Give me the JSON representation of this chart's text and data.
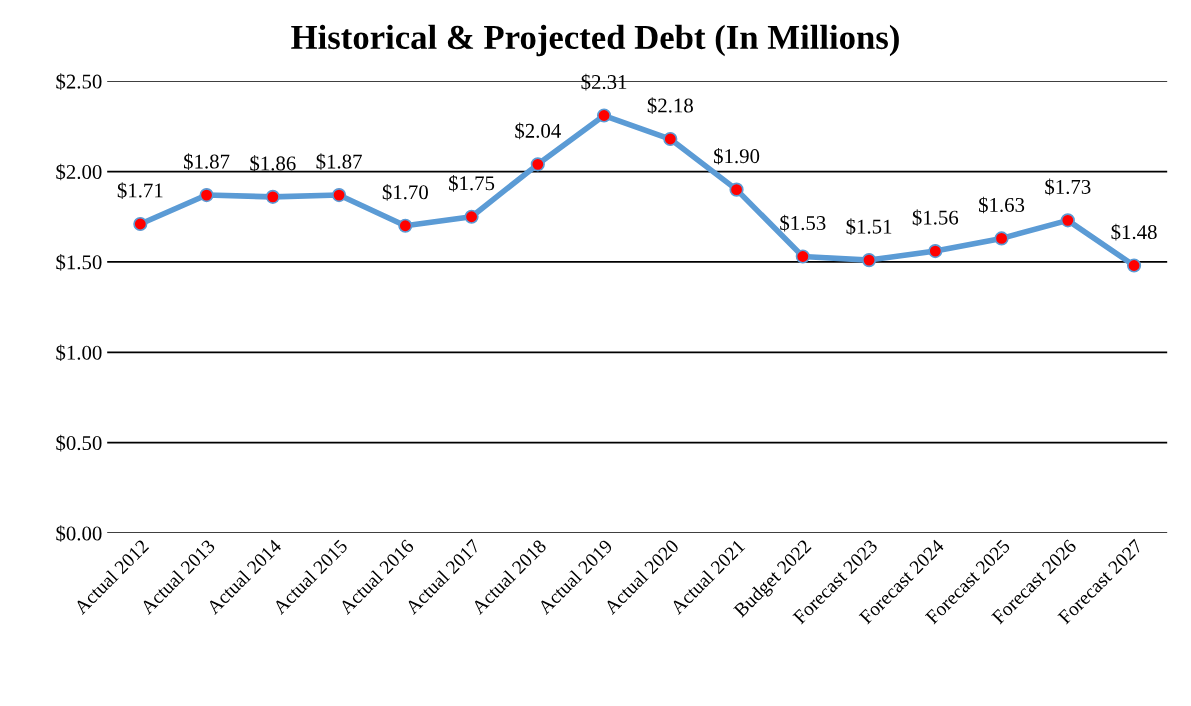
{
  "chart_data": {
    "type": "line",
    "title": "Historical & Projected Debt (In Millions)",
    "categories": [
      "Actual 2012",
      "Actual 2013",
      "Actual 2014",
      "Actual 2015",
      "Actual 2016",
      "Actual 2017",
      "Actual 2018",
      "Actual 2019",
      "Actual 2020",
      "Actual 2021",
      "Budget 2022",
      "Forecast 2023",
      "Forecast 2024",
      "Forecast 2025",
      "Forecast 2026",
      "Forecast 2027"
    ],
    "series": [
      {
        "color": "#5b9bd5",
        "values": [
          1.71,
          1.87,
          1.86,
          1.87,
          1.7,
          1.75,
          2.04,
          2.31,
          2.18,
          1.9,
          1.53,
          1.51,
          1.56,
          1.63,
          1.73,
          1.48
        ],
        "value_labels": [
          "$1.71",
          "$1.87",
          "$1.86",
          "$1.87",
          "$1.70",
          "$1.75",
          "$2.04",
          "$2.31",
          "$2.18",
          "$1.90",
          "$1.53",
          "$1.51",
          "$1.56",
          "$1.63",
          "$1.73",
          "$1.48"
        ]
      }
    ],
    "ylim": [
      0,
      2.5
    ],
    "yticks": [
      {
        "value": 0,
        "label": "$0.00"
      },
      {
        "value": 0.5,
        "label": "$0.50"
      },
      {
        "value": 1.0,
        "label": "$1.00"
      },
      {
        "value": 1.5,
        "label": "$1.50"
      },
      {
        "value": 2.0,
        "label": "$2.00"
      },
      {
        "value": 2.5,
        "label": "$2.50"
      }
    ],
    "grid": "y",
    "marker": "circle",
    "line_style": "solid"
  }
}
